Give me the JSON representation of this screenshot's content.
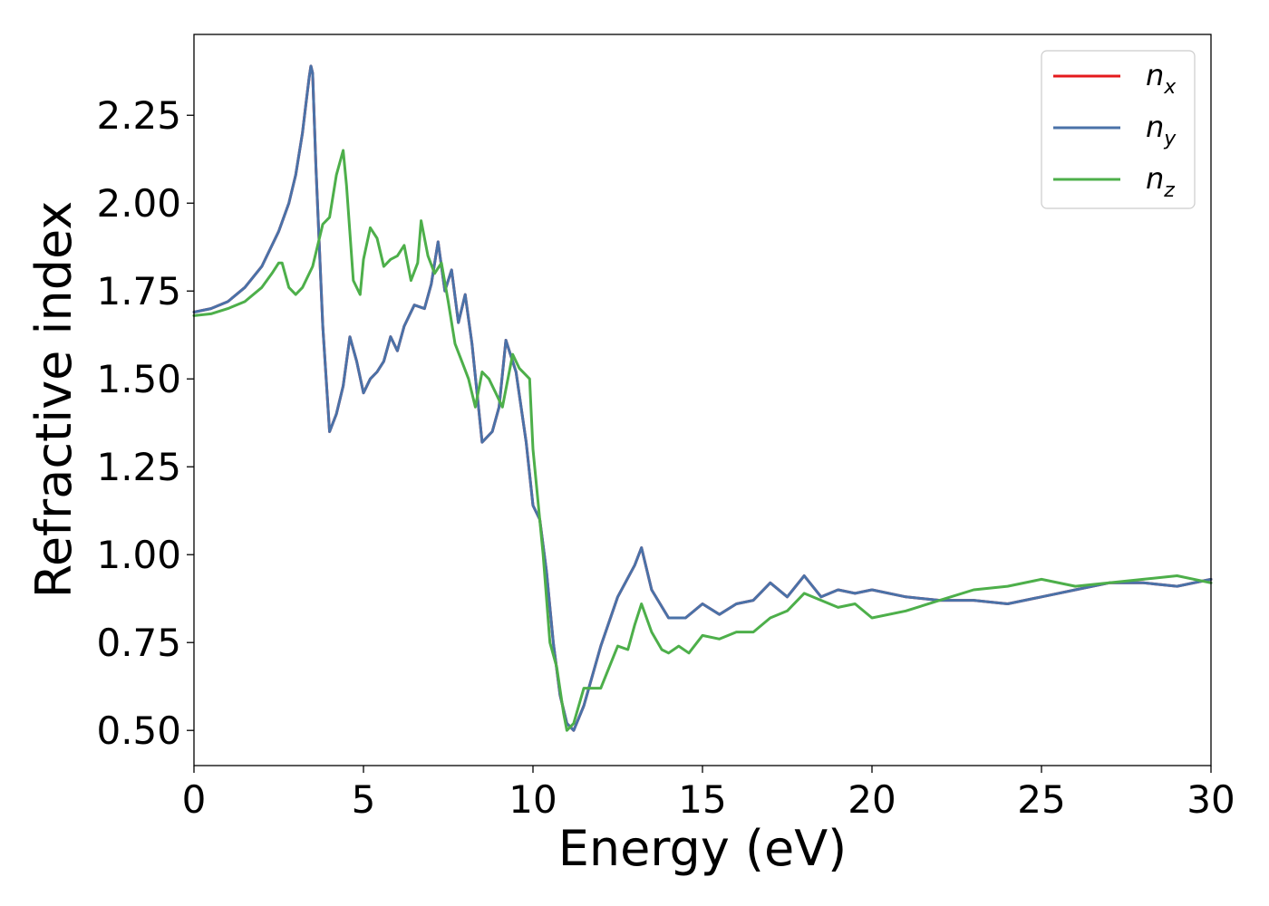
{
  "chart_data": {
    "type": "line",
    "xlabel": "Energy (eV)",
    "ylabel": "Refractive index",
    "xlim": [
      0,
      30
    ],
    "ylim": [
      0.4,
      2.48
    ],
    "xticks": [
      "0",
      "5",
      "10",
      "15",
      "20",
      "25",
      "30"
    ],
    "yticks": [
      "0.50",
      "0.75",
      "1.00",
      "1.25",
      "1.50",
      "1.75",
      "2.00",
      "2.25"
    ],
    "grid": false,
    "legend_position": "top-right",
    "series": [
      {
        "name": "n_x",
        "legend_main": "n",
        "legend_sub": "x",
        "color": "#e41a1c",
        "x": [
          0,
          0.5,
          1.0,
          1.5,
          2.0,
          2.5,
          2.8,
          3.0,
          3.2,
          3.3,
          3.4,
          3.45,
          3.5,
          3.6,
          3.8,
          4.0,
          4.2,
          4.4,
          4.6,
          4.8,
          5.0,
          5.2,
          5.4,
          5.6,
          5.8,
          6.0,
          6.2,
          6.5,
          6.8,
          7.0,
          7.2,
          7.4,
          7.6,
          7.8,
          8.0,
          8.2,
          8.5,
          8.8,
          9.0,
          9.2,
          9.5,
          9.8,
          10.0,
          10.2,
          10.4,
          10.6,
          10.8,
          11.0,
          11.2,
          11.5,
          12.0,
          12.5,
          13.0,
          13.2,
          13.5,
          14.0,
          14.5,
          15.0,
          15.5,
          16.0,
          16.5,
          17.0,
          17.5,
          18.0,
          18.5,
          19.0,
          19.5,
          20.0,
          21.0,
          22.0,
          23.0,
          24.0,
          25.0,
          26.0,
          27.0,
          28.0,
          29.0,
          30.0
        ],
        "values": [
          1.69,
          1.7,
          1.72,
          1.76,
          1.82,
          1.92,
          2.0,
          2.08,
          2.2,
          2.28,
          2.36,
          2.39,
          2.37,
          2.1,
          1.65,
          1.35,
          1.4,
          1.48,
          1.62,
          1.55,
          1.46,
          1.5,
          1.52,
          1.55,
          1.62,
          1.58,
          1.65,
          1.71,
          1.7,
          1.77,
          1.89,
          1.75,
          1.81,
          1.66,
          1.74,
          1.6,
          1.32,
          1.35,
          1.42,
          1.61,
          1.52,
          1.32,
          1.14,
          1.1,
          0.95,
          0.75,
          0.6,
          0.52,
          0.5,
          0.57,
          0.74,
          0.88,
          0.97,
          1.02,
          0.9,
          0.82,
          0.82,
          0.86,
          0.83,
          0.86,
          0.87,
          0.92,
          0.88,
          0.94,
          0.88,
          0.9,
          0.89,
          0.9,
          0.88,
          0.87,
          0.87,
          0.86,
          0.88,
          0.9,
          0.92,
          0.92,
          0.91,
          0.93
        ]
      },
      {
        "name": "n_y",
        "legend_main": "n",
        "legend_sub": "y",
        "color": "#4a72a8",
        "x": [
          0,
          0.5,
          1.0,
          1.5,
          2.0,
          2.5,
          2.8,
          3.0,
          3.2,
          3.3,
          3.4,
          3.45,
          3.5,
          3.6,
          3.8,
          4.0,
          4.2,
          4.4,
          4.6,
          4.8,
          5.0,
          5.2,
          5.4,
          5.6,
          5.8,
          6.0,
          6.2,
          6.5,
          6.8,
          7.0,
          7.2,
          7.4,
          7.6,
          7.8,
          8.0,
          8.2,
          8.5,
          8.8,
          9.0,
          9.2,
          9.5,
          9.8,
          10.0,
          10.2,
          10.4,
          10.6,
          10.8,
          11.0,
          11.2,
          11.5,
          12.0,
          12.5,
          13.0,
          13.2,
          13.5,
          14.0,
          14.5,
          15.0,
          15.5,
          16.0,
          16.5,
          17.0,
          17.5,
          18.0,
          18.5,
          19.0,
          19.5,
          20.0,
          21.0,
          22.0,
          23.0,
          24.0,
          25.0,
          26.0,
          27.0,
          28.0,
          29.0,
          30.0
        ],
        "values": [
          1.69,
          1.7,
          1.72,
          1.76,
          1.82,
          1.92,
          2.0,
          2.08,
          2.2,
          2.28,
          2.36,
          2.39,
          2.37,
          2.1,
          1.65,
          1.35,
          1.4,
          1.48,
          1.62,
          1.55,
          1.46,
          1.5,
          1.52,
          1.55,
          1.62,
          1.58,
          1.65,
          1.71,
          1.7,
          1.77,
          1.89,
          1.75,
          1.81,
          1.66,
          1.74,
          1.6,
          1.32,
          1.35,
          1.42,
          1.61,
          1.52,
          1.32,
          1.14,
          1.1,
          0.95,
          0.75,
          0.6,
          0.52,
          0.5,
          0.57,
          0.74,
          0.88,
          0.97,
          1.02,
          0.9,
          0.82,
          0.82,
          0.86,
          0.83,
          0.86,
          0.87,
          0.92,
          0.88,
          0.94,
          0.88,
          0.9,
          0.89,
          0.9,
          0.88,
          0.87,
          0.87,
          0.86,
          0.88,
          0.9,
          0.92,
          0.92,
          0.91,
          0.93
        ]
      },
      {
        "name": "n_z",
        "legend_main": "n",
        "legend_sub": "z",
        "color": "#4daf4a",
        "x": [
          0,
          0.5,
          1.0,
          1.5,
          2.0,
          2.3,
          2.5,
          2.6,
          2.8,
          3.0,
          3.2,
          3.5,
          3.8,
          4.0,
          4.2,
          4.4,
          4.5,
          4.7,
          4.9,
          5.0,
          5.2,
          5.4,
          5.6,
          5.8,
          6.0,
          6.2,
          6.4,
          6.6,
          6.7,
          6.9,
          7.1,
          7.3,
          7.5,
          7.7,
          7.9,
          8.1,
          8.3,
          8.5,
          8.7,
          8.9,
          9.1,
          9.4,
          9.6,
          9.9,
          10.0,
          10.3,
          10.5,
          10.7,
          10.9,
          11.0,
          11.2,
          11.5,
          12.0,
          12.5,
          12.8,
          13.0,
          13.2,
          13.5,
          13.8,
          14.0,
          14.3,
          14.6,
          15.0,
          15.5,
          16.0,
          16.5,
          17.0,
          17.5,
          18.0,
          18.5,
          19.0,
          19.5,
          20.0,
          21.0,
          22.0,
          23.0,
          24.0,
          25.0,
          26.0,
          27.0,
          28.0,
          29.0,
          30.0
        ],
        "values": [
          1.68,
          1.685,
          1.7,
          1.72,
          1.76,
          1.8,
          1.83,
          1.83,
          1.76,
          1.74,
          1.76,
          1.82,
          1.94,
          1.96,
          2.08,
          2.15,
          2.05,
          1.78,
          1.74,
          1.84,
          1.93,
          1.9,
          1.82,
          1.84,
          1.85,
          1.88,
          1.78,
          1.83,
          1.95,
          1.85,
          1.8,
          1.83,
          1.72,
          1.6,
          1.55,
          1.5,
          1.42,
          1.52,
          1.5,
          1.46,
          1.42,
          1.57,
          1.53,
          1.5,
          1.3,
          1.0,
          0.75,
          0.68,
          0.55,
          0.5,
          0.52,
          0.62,
          0.62,
          0.74,
          0.73,
          0.8,
          0.86,
          0.78,
          0.73,
          0.72,
          0.74,
          0.72,
          0.77,
          0.76,
          0.78,
          0.78,
          0.82,
          0.84,
          0.89,
          0.87,
          0.85,
          0.86,
          0.82,
          0.84,
          0.87,
          0.9,
          0.91,
          0.93,
          0.91,
          0.92,
          0.93,
          0.94,
          0.92
        ]
      }
    ]
  }
}
